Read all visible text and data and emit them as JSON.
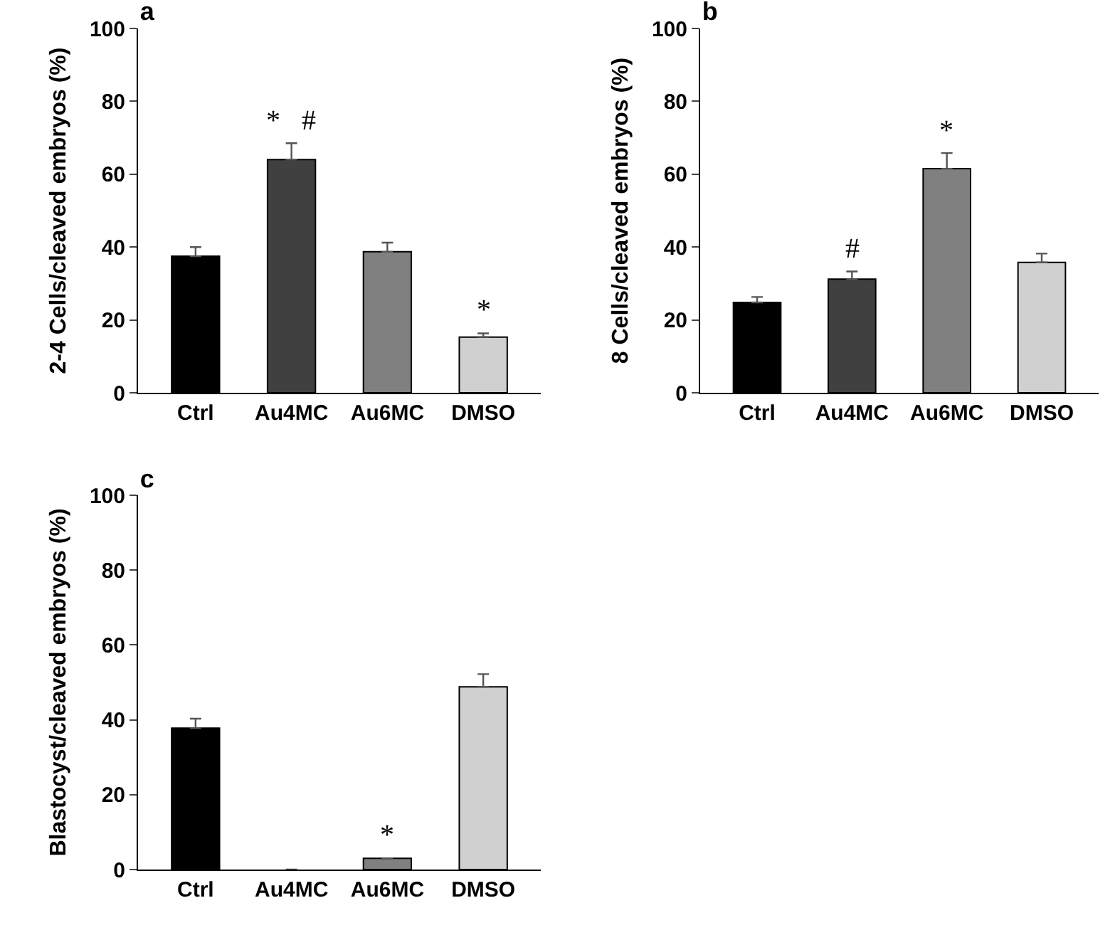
{
  "chart_data": [
    {
      "type": "bar",
      "title": "a",
      "ylabel": "2-4 Cells/cleaved embryos (%)",
      "categories": [
        "Ctrl",
        "Au4MC",
        "Au6MC",
        "DMSO"
      ],
      "values": [
        37.5,
        64,
        38.7,
        15.3
      ],
      "colors": [
        "#000000",
        "#404040",
        "#808080",
        "#d0d0d0"
      ],
      "errors": [
        [
          37.5,
          40
        ],
        [
          64,
          68.5
        ],
        [
          38.7,
          41.2
        ],
        [
          15.3,
          16.3
        ]
      ],
      "ylim": [
        0,
        100
      ],
      "yticks": [
        0,
        20,
        40,
        60,
        80,
        100
      ],
      "grid": false,
      "annotations": [
        {
          "text": "*   #",
          "x": "Au4MC",
          "y": 68.5
        },
        {
          "text": "*",
          "x": "DMSO",
          "y": 16.3
        }
      ]
    },
    {
      "type": "bar",
      "title": "b",
      "ylabel": "8 Cells/cleaved embryos (%)",
      "categories": [
        "Ctrl",
        "Au4MC",
        "Au6MC",
        "DMSO"
      ],
      "values": [
        24.8,
        31.2,
        61.5,
        35.8
      ],
      "colors": [
        "#000000",
        "#404040",
        "#808080",
        "#d0d0d0"
      ],
      "errors": [
        [
          24.8,
          26.3
        ],
        [
          31.2,
          33.3
        ],
        [
          61.5,
          65.8
        ],
        [
          35.8,
          38.2
        ]
      ],
      "ylim": [
        0,
        100
      ],
      "yticks": [
        0,
        20,
        40,
        60,
        80,
        100
      ],
      "grid": false,
      "annotations": [
        {
          "text": "#",
          "x": "Au4MC",
          "y": 33.3
        },
        {
          "text": "*",
          "x": "Au6MC",
          "y": 65.8
        }
      ]
    },
    {
      "type": "bar",
      "title": "c",
      "ylabel": "Blastocyst/cleaved embryos (%)",
      "categories": [
        "Ctrl",
        "Au4MC",
        "Au6MC",
        "DMSO"
      ],
      "values": [
        37.8,
        0,
        3,
        48.8
      ],
      "colors": [
        "#000000",
        "#404040",
        "#808080",
        "#d0d0d0"
      ],
      "errors": [
        [
          37.8,
          40.3
        ],
        null,
        null,
        [
          48.8,
          52.2
        ]
      ],
      "ylim": [
        0,
        100
      ],
      "yticks": [
        0,
        20,
        40,
        60,
        80,
        100
      ],
      "grid": false,
      "annotations": [
        {
          "text": "*",
          "x": "Au6MC",
          "y": 3
        }
      ]
    }
  ]
}
